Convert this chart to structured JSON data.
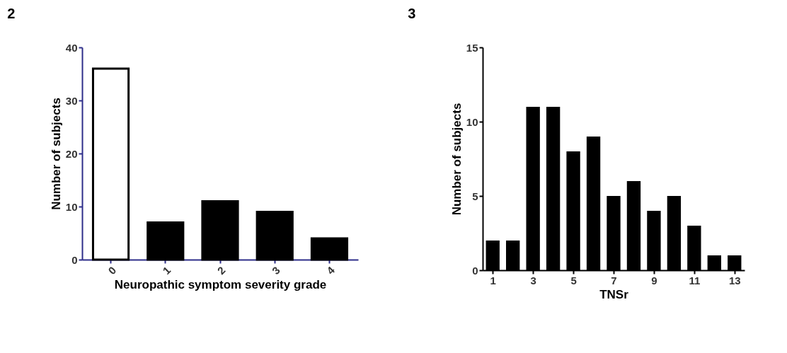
{
  "chart_data": [
    {
      "type": "bar",
      "title": "2",
      "xlabel": "Neuropathic symptom severity grade",
      "ylabel": "Number of subjects",
      "categories": [
        "0",
        "1",
        "2",
        "3",
        "4"
      ],
      "values": [
        36,
        7,
        11,
        9,
        4
      ],
      "colors": [
        "#ffffff",
        "#000000",
        "#000000",
        "#000000",
        "#000000"
      ],
      "ylim": [
        0,
        40
      ],
      "yticks": [
        0,
        10,
        20,
        30,
        40
      ],
      "grid": false
    },
    {
      "type": "bar",
      "title": "3",
      "xlabel": "TNSr",
      "ylabel": "Number of subjects",
      "x": [
        1,
        2,
        3,
        4,
        5,
        6,
        7,
        8,
        9,
        10,
        11,
        12,
        13
      ],
      "values": [
        2,
        2,
        11,
        11,
        8,
        9,
        5,
        6,
        4,
        5,
        3,
        1,
        1
      ],
      "color": "#000000",
      "xlim": [
        0.5,
        13.5
      ],
      "xticks": [
        1,
        3,
        5,
        7,
        9,
        11,
        13
      ],
      "ylim": [
        0,
        15
      ],
      "yticks": [
        0,
        5,
        10,
        15
      ],
      "grid": false
    }
  ]
}
